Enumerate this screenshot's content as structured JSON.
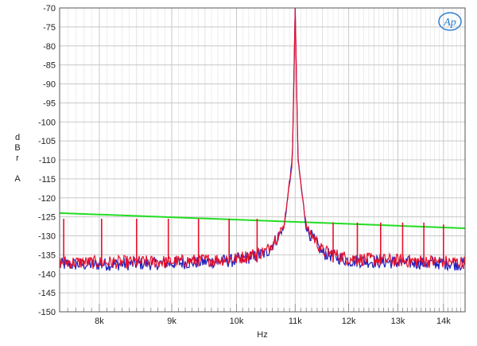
{
  "chart_data": {
    "type": "line",
    "xlabel": "Hz",
    "ylabel": [
      "d",
      "B",
      "r",
      "",
      "A"
    ],
    "xscale": "log",
    "xlim": [
      7500,
      14500
    ],
    "ylim": [
      -150,
      -70
    ],
    "grid": true,
    "logo": "AP",
    "x_ticks": [
      {
        "value": 8000,
        "label": "8k"
      },
      {
        "value": 9000,
        "label": "9k"
      },
      {
        "value": 10000,
        "label": "10k"
      },
      {
        "value": 11000,
        "label": "11k"
      },
      {
        "value": 12000,
        "label": "12k"
      },
      {
        "value": 13000,
        "label": "13k"
      },
      {
        "value": 14000,
        "label": "14k"
      }
    ],
    "y_ticks": [
      -70,
      -75,
      -80,
      -85,
      -90,
      -95,
      -100,
      -105,
      -110,
      -115,
      -120,
      -125,
      -130,
      -135,
      -140,
      -145,
      -150
    ],
    "colors": {
      "green": "#22dd22",
      "blue": "#1f1fbf",
      "red": "#e8102a",
      "grid": "#c8c8c8"
    },
    "series": [
      {
        "color": "#22dd22",
        "x": [
          7500,
          14500
        ],
        "y": [
          -124,
          -128
        ]
      },
      {
        "color": "#1f1fbf",
        "baseline": -137.5,
        "x": [
          7500,
          8000,
          9000,
          10000,
          10500,
          10800,
          10950,
          11000,
          11050,
          11200,
          11500,
          12000,
          13000,
          14000,
          14500
        ],
        "y": [
          -137.5,
          -137.5,
          -137.2,
          -136.5,
          -134.5,
          -128,
          -110,
          -70,
          -110,
          -128,
          -134.5,
          -136.5,
          -137,
          -137.2,
          -137.5
        ]
      },
      {
        "color": "#e8102a",
        "baseline": -137,
        "x": [
          7500,
          8000,
          9000,
          10000,
          10500,
          10800,
          10950,
          11000,
          11050,
          11200,
          11500,
          12000,
          13000,
          14000,
          14500
        ],
        "y": [
          -137,
          -137,
          -136.8,
          -136,
          -134,
          -127.5,
          -110,
          -70,
          -110,
          -127.5,
          -134,
          -136,
          -136.5,
          -136.8,
          -137
        ],
        "spurs": [
          {
            "x": 7550,
            "y": -125.5
          },
          {
            "x": 8030,
            "y": -125.5
          },
          {
            "x": 8500,
            "y": -125.5
          },
          {
            "x": 8950,
            "y": -125.5
          },
          {
            "x": 9400,
            "y": -125.5
          },
          {
            "x": 9880,
            "y": -125.5
          },
          {
            "x": 10340,
            "y": -125.5
          },
          {
            "x": 11700,
            "y": -126.5
          },
          {
            "x": 12170,
            "y": -126.5
          },
          {
            "x": 12640,
            "y": -126.5
          },
          {
            "x": 13100,
            "y": -126.5
          },
          {
            "x": 13560,
            "y": -126.5
          },
          {
            "x": 14000,
            "y": -127
          }
        ]
      }
    ]
  }
}
